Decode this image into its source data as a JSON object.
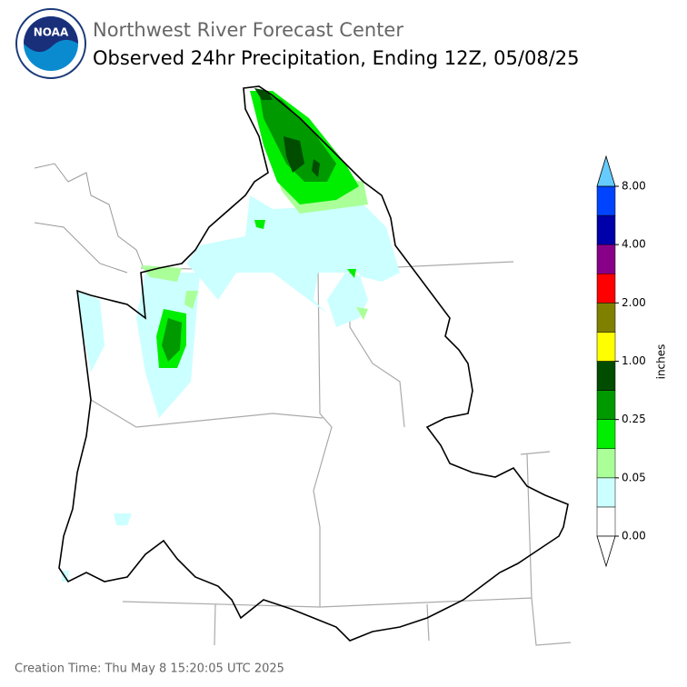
{
  "header": {
    "title": "Northwest River Forecast Center",
    "subtitle": "Observed 24hr Precipitation, Ending 12Z, 05/08/25",
    "logo_text": "NOAA"
  },
  "colorbar": {
    "label": "inches",
    "colors": [
      "#ffffff",
      "#ccffff",
      "#aaff99",
      "#00ee00",
      "#009900",
      "#004d00",
      "#ffff00",
      "#808000",
      "#ff0000",
      "#880088",
      "#0000aa",
      "#0044ff"
    ],
    "over_color": "#66ccff",
    "under_color": "#ffffff",
    "tick_labels": [
      "0.00",
      "0.05",
      "0.25",
      "1.00",
      "2.00",
      "4.00",
      "8.00"
    ]
  },
  "footer": {
    "creation_time": "Creation Time: Thu May 8 15:20:05 UTC 2025"
  }
}
